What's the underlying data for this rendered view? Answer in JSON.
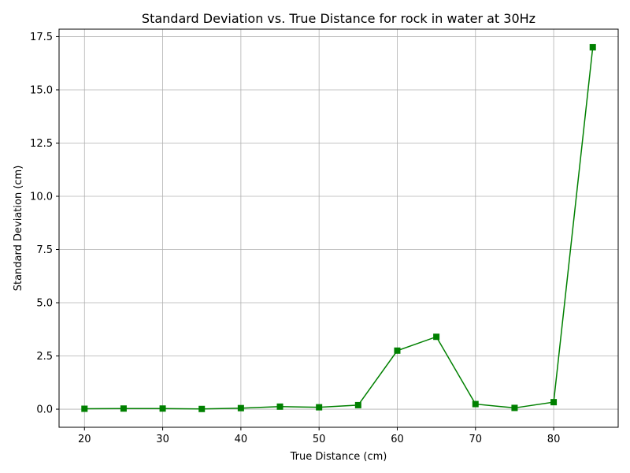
{
  "chart_data": {
    "type": "line",
    "title": "Standard Deviation vs. True Distance for rock in water at 30Hz",
    "xlabel": "True Distance (cm)",
    "ylabel": "Standard Deviation (cm)",
    "xlim": [
      16.75,
      88.25
    ],
    "ylim": [
      -0.85,
      17.85
    ],
    "xticks": [
      20,
      30,
      40,
      50,
      60,
      70,
      80
    ],
    "xtick_labels": [
      "20",
      "30",
      "40",
      "50",
      "60",
      "70",
      "80"
    ],
    "yticks": [
      0,
      2.5,
      5,
      7.5,
      10,
      12.5,
      15,
      17.5
    ],
    "ytick_labels": [
      "0.0",
      "2.5",
      "5.0",
      "7.5",
      "10.0",
      "12.5",
      "15.0",
      "17.5"
    ],
    "grid": true,
    "series": [
      {
        "color": "#008000",
        "marker": "square",
        "x": [
          20,
          25,
          30,
          35,
          40,
          45,
          50,
          55,
          60,
          65,
          70,
          75,
          80,
          85
        ],
        "y": [
          0.02,
          0.03,
          0.03,
          0.01,
          0.05,
          0.12,
          0.09,
          0.19,
          2.75,
          3.4,
          0.24,
          0.06,
          0.33,
          17.0
        ]
      }
    ]
  }
}
